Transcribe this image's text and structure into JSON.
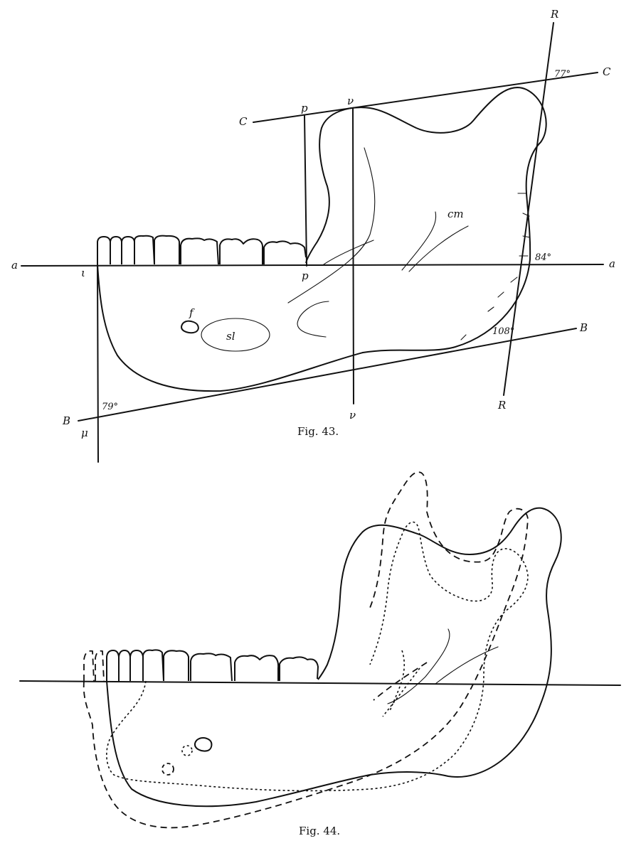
{
  "fig43": {
    "caption": "Fig. 43.",
    "line_labels": {
      "a_left": "a",
      "a_right": "a",
      "C_left": "C",
      "C_right": "C",
      "B_left": "B",
      "B_right": "B",
      "R_top": "R",
      "R_bottom": "R",
      "p_top": "p",
      "p_bottom": "p",
      "nu_top": "ν",
      "nu_bottom": "ν",
      "iota": "ι",
      "mu": "μ"
    },
    "feature_labels": {
      "cm": "cm",
      "f": "f",
      "sl": "sl"
    },
    "angles": {
      "top_right": "77°",
      "mid_right": "84°",
      "lower_right": "108°",
      "lower_left": "79°"
    }
  },
  "fig44": {
    "caption": "Fig. 44."
  }
}
